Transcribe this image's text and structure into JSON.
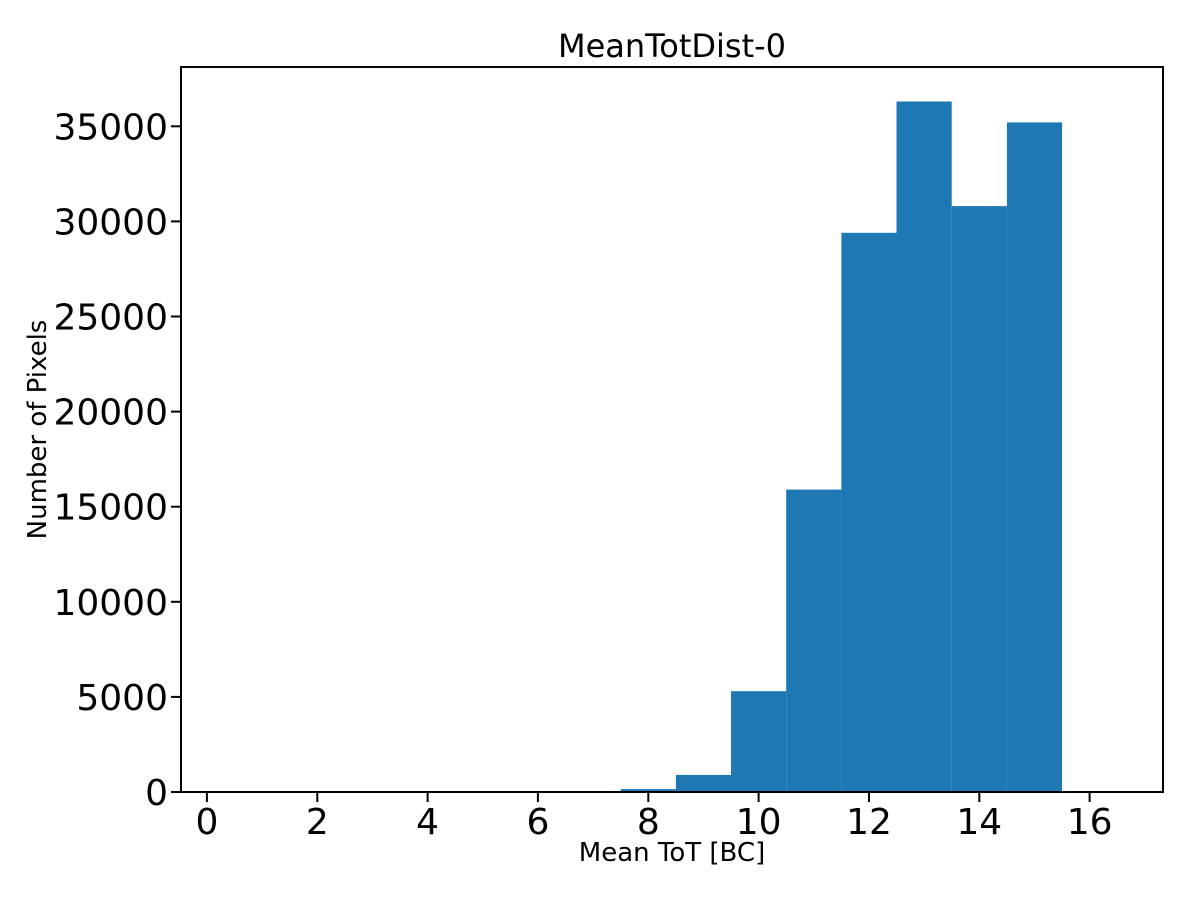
{
  "colors": {
    "background": "#ffffff",
    "spine": "#000000",
    "bar": "#1f77b4"
  },
  "chart_data": {
    "type": "bar",
    "subtype": "histogram",
    "title": "MeanTotDist-0",
    "xlabel": "Mean ToT [BC]",
    "ylabel": "Number of Pixels",
    "bin_edges": [
      7.5,
      8.5,
      9.5,
      10.5,
      11.5,
      12.5,
      13.5,
      14.5,
      15.5
    ],
    "values": [
      150,
      900,
      5300,
      15900,
      29400,
      36300,
      30800,
      35200
    ],
    "xticks": [
      0,
      2,
      4,
      6,
      8,
      10,
      12,
      14,
      16
    ],
    "yticks": [
      0,
      5000,
      10000,
      15000,
      20000,
      25000,
      30000,
      35000
    ],
    "xlim": [
      -0.47,
      17.33
    ],
    "ylim": [
      0,
      38115
    ],
    "bar_color": "#1f77b4",
    "grid": false,
    "legend": null
  }
}
